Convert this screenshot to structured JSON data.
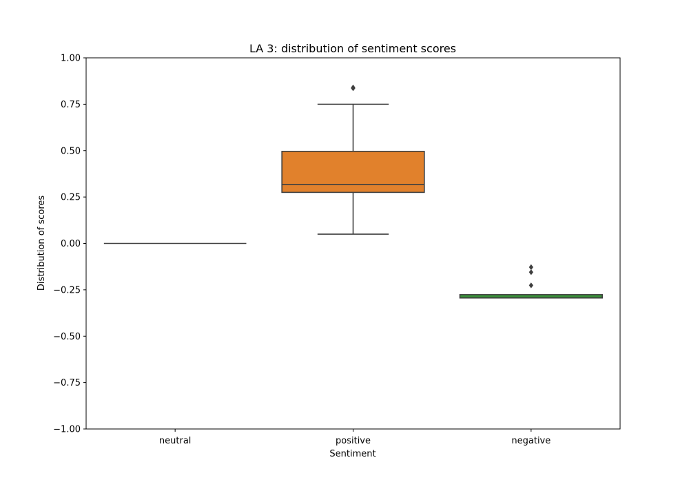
{
  "chart_data": {
    "type": "box",
    "title": "LA 3: distribution of sentiment scores",
    "xlabel": "Sentiment",
    "ylabel": "Distribution of scores",
    "ylim": [
      -1.0,
      1.0
    ],
    "yticks": [
      1.0,
      0.75,
      0.5,
      0.25,
      0.0,
      -0.25,
      -0.5,
      -0.75,
      -1.0
    ],
    "ytick_labels": [
      "1.00",
      "0.75",
      "0.50",
      "0.25",
      "0.00",
      "−0.25",
      "−0.50",
      "−0.75",
      "−1.00"
    ],
    "categories": [
      "neutral",
      "positive",
      "negative"
    ],
    "boxes": [
      {
        "category": "neutral",
        "color": "#3a923a",
        "whisker_low": 0.0,
        "q1": 0.0,
        "median": 0.0,
        "q3": 0.0,
        "whisker_high": 0.0,
        "outliers": []
      },
      {
        "category": "positive",
        "color": "#e1812c",
        "whisker_low": 0.05,
        "q1": 0.275,
        "median": 0.318,
        "q3": 0.496,
        "whisker_high": 0.75,
        "outliers": [
          0.84,
          0.836
        ]
      },
      {
        "category": "negative",
        "color": "#3a923a",
        "whisker_low": -0.294,
        "q1": -0.294,
        "median": -0.294,
        "q3": -0.276,
        "whisker_high": -0.276,
        "outliers": [
          -0.128,
          -0.155,
          -0.226
        ]
      }
    ],
    "grid": false,
    "legend": "none"
  }
}
